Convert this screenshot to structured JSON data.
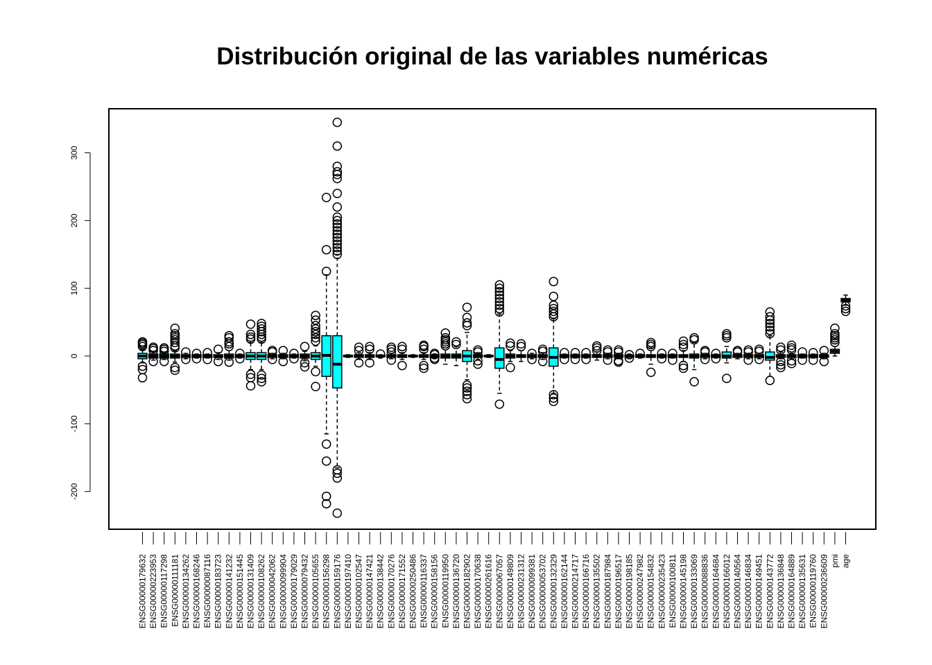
{
  "chart_data": {
    "type": "boxplot",
    "title": "Distribución original de las variables numéricas",
    "xlabel": "",
    "ylabel": "",
    "ylim": [
      -250,
      350
    ],
    "yticks": [
      -200,
      -100,
      0,
      100,
      200,
      300
    ],
    "box_color": "#00FFFF",
    "grid": false,
    "legend": "none",
    "categories": [
      "ENSG00000179632",
      "ENSG00000223953",
      "ENSG00000117298",
      "ENSG00000111181",
      "ENSG00000134262",
      "ENSG00000168246",
      "ENSG00000087116",
      "ENSG00000183723",
      "ENSG00000141232",
      "ENSG00000151445",
      "ENSG00000131409",
      "ENSG00000108262",
      "ENSG00000042062",
      "ENSG00000099904",
      "ENSG00000179029",
      "ENSG00000079432",
      "ENSG00000105655",
      "ENSG00000156298",
      "ENSG00000159176",
      "ENSG00000197410",
      "ENSG00000102547",
      "ENSG00000147421",
      "ENSG00000138442",
      "ENSG00000170276",
      "ENSG00000171552",
      "ENSG00000250486",
      "ENSG00000116337",
      "ENSG00000158156",
      "ENSG00000119950",
      "ENSG00000136720",
      "ENSG00000182902",
      "ENSG00000170638",
      "ENSG00000261616",
      "ENSG00000067057",
      "ENSG00000149809",
      "ENSG00000231312",
      "ENSG00000099381",
      "ENSG00000053702",
      "ENSG00000132329",
      "ENSG00000162144",
      "ENSG00000214717",
      "ENSG00000166716",
      "ENSG00000135502",
      "ENSG00000187984",
      "ENSG00000196517",
      "ENSG00000198185",
      "ENSG00000247982",
      "ENSG00000154832",
      "ENSG00000235423",
      "ENSG00000100811",
      "ENSG00000145198",
      "ENSG00000133069",
      "ENSG00000088836",
      "ENSG00000164684",
      "ENSG00000166012",
      "ENSG00000140564",
      "ENSG00000146834",
      "ENSG00000149451",
      "ENSG00000143772",
      "ENSG00000136848",
      "ENSG00000164889",
      "ENSG00000135631",
      "ENSG00000119760",
      "ENSG00000236609",
      "pmi",
      "age"
    ],
    "boxes": [
      {
        "q1": -4,
        "median": 0,
        "q3": 4,
        "lo": -10,
        "hi": 10,
        "out": [
          -32,
          -20,
          -15,
          14,
          17,
          19,
          21
        ]
      },
      {
        "q1": -3,
        "median": 0,
        "q3": 3,
        "lo": -6,
        "hi": 6,
        "out": [
          -8,
          8,
          11,
          13
        ]
      },
      {
        "q1": -3,
        "median": 0,
        "q3": 3,
        "lo": -5,
        "hi": 5,
        "out": [
          -8,
          7,
          10,
          12
        ]
      },
      {
        "q1": -3,
        "median": 0,
        "q3": 3,
        "lo": -9,
        "hi": 8,
        "out": [
          -21,
          -17,
          12,
          15,
          20,
          24,
          27,
          30,
          33,
          41
        ]
      },
      {
        "q1": -2,
        "median": 0,
        "q3": 2,
        "lo": -4,
        "hi": 4,
        "out": [
          -5,
          6
        ]
      },
      {
        "q1": -2,
        "median": 0,
        "q3": 2,
        "lo": -3,
        "hi": 3,
        "out": [
          -4,
          4
        ]
      },
      {
        "q1": -2,
        "median": 0,
        "q3": 2,
        "lo": -3,
        "hi": 3,
        "out": [
          -5,
          5
        ]
      },
      {
        "q1": -2,
        "median": 0,
        "q3": 2,
        "lo": -5,
        "hi": 5,
        "out": [
          -8,
          10
        ]
      },
      {
        "q1": -3,
        "median": 0,
        "q3": 3,
        "lo": -6,
        "hi": 12,
        "out": [
          -9,
          14,
          18,
          21,
          27,
          30
        ]
      },
      {
        "q1": -2,
        "median": 0,
        "q3": 2,
        "lo": -3,
        "hi": 3,
        "out": [
          -4,
          4
        ]
      },
      {
        "q1": -5,
        "median": 0,
        "q3": 5,
        "lo": -20,
        "hi": 20,
        "out": [
          -44,
          -32,
          -27,
          25,
          28,
          32,
          47
        ]
      },
      {
        "q1": -5,
        "median": 0,
        "q3": 5,
        "lo": -20,
        "hi": 20,
        "out": [
          -38,
          -33,
          -28,
          25,
          28,
          32,
          36,
          40,
          44,
          48
        ]
      },
      {
        "q1": -2,
        "median": 0,
        "q3": 2,
        "lo": -4,
        "hi": 4,
        "out": [
          -5,
          6,
          8
        ]
      },
      {
        "q1": -2,
        "median": 0,
        "q3": 2,
        "lo": -4,
        "hi": 4,
        "out": [
          -8,
          8
        ]
      },
      {
        "q1": -2,
        "median": 0,
        "q3": 2,
        "lo": -3,
        "hi": 3,
        "out": [
          -4,
          4
        ]
      },
      {
        "q1": -3,
        "median": 0,
        "q3": 3,
        "lo": -7,
        "hi": 7,
        "out": [
          -16,
          -10,
          14
        ]
      },
      {
        "q1": -5,
        "median": 0,
        "q3": 5,
        "lo": -15,
        "hi": 15,
        "out": [
          -45,
          -23,
          22,
          27,
          32,
          36,
          40,
          45,
          53,
          60
        ]
      },
      {
        "q1": -30,
        "median": 1,
        "q3": 30,
        "lo": -115,
        "hi": 120,
        "out": [
          -218,
          -207,
          -155,
          -130,
          125,
          157,
          234
        ]
      },
      {
        "q1": -47,
        "median": -12,
        "q3": 30,
        "lo": -165,
        "hi": 150,
        "out": [
          -232,
          -180,
          -173,
          -168,
          150,
          155,
          160,
          165,
          170,
          175,
          180,
          185,
          190,
          195,
          200,
          205,
          220,
          240,
          262,
          268,
          272,
          280,
          310,
          345
        ]
      },
      {
        "q1": -1,
        "median": 0,
        "q3": 1,
        "lo": -2,
        "hi": 2,
        "out": []
      },
      {
        "q1": -2,
        "median": 0,
        "q3": 2,
        "lo": -5,
        "hi": 5,
        "out": [
          -10,
          8,
          13
        ]
      },
      {
        "q1": -2,
        "median": 0,
        "q3": 2,
        "lo": -5,
        "hi": 5,
        "out": [
          -10,
          10,
          14
        ]
      },
      {
        "q1": -1,
        "median": 0,
        "q3": 1,
        "lo": -2,
        "hi": 2,
        "out": [
          3
        ]
      },
      {
        "q1": -2,
        "median": 0,
        "q3": 2,
        "lo": -4,
        "hi": 4,
        "out": [
          -6,
          6,
          10,
          13
        ]
      },
      {
        "q1": -2,
        "median": 0,
        "q3": 2,
        "lo": -5,
        "hi": 5,
        "out": [
          -14,
          10,
          14
        ]
      },
      {
        "q1": -1,
        "median": 0,
        "q3": 1,
        "lo": -2,
        "hi": 2,
        "out": []
      },
      {
        "q1": -2,
        "median": 0,
        "q3": 2,
        "lo": -5,
        "hi": 5,
        "out": [
          -18,
          -14,
          10,
          14,
          16
        ]
      },
      {
        "q1": -2,
        "median": 0,
        "q3": 2,
        "lo": -3,
        "hi": 3,
        "out": [
          -5,
          -3,
          2,
          4
        ]
      },
      {
        "q1": -3,
        "median": 0,
        "q3": 3,
        "lo": -12,
        "hi": 12,
        "out": [
          15,
          18,
          21,
          24,
          27,
          34
        ]
      },
      {
        "q1": -3,
        "median": 0,
        "q3": 3,
        "lo": -14,
        "hi": 14,
        "out": [
          17,
          21
        ]
      },
      {
        "q1": -8,
        "median": 0,
        "q3": 8,
        "lo": -35,
        "hi": 35,
        "out": [
          -63,
          -57,
          -52,
          -47,
          -43,
          45,
          49,
          57,
          72
        ]
      },
      {
        "q1": -2,
        "median": 0,
        "q3": 2,
        "lo": -5,
        "hi": 5,
        "out": [
          -12,
          -7,
          6,
          9
        ]
      },
      {
        "q1": -1,
        "median": 0,
        "q3": 1,
        "lo": -2,
        "hi": 2,
        "out": []
      },
      {
        "q1": -18,
        "median": -5,
        "q3": 12,
        "lo": -55,
        "hi": 62,
        "out": [
          -71,
          65,
          70,
          75,
          80,
          85,
          90,
          95,
          100,
          105
        ]
      },
      {
        "q1": -3,
        "median": 0,
        "q3": 3,
        "lo": -8,
        "hi": 8,
        "out": [
          -17,
          15,
          19
        ]
      },
      {
        "q1": -2,
        "median": 0,
        "q3": 2,
        "lo": -8,
        "hi": 8,
        "out": [
          14,
          18
        ]
      },
      {
        "q1": -2,
        "median": 0,
        "q3": 2,
        "lo": -4,
        "hi": 4,
        "out": [
          -5,
          4
        ]
      },
      {
        "q1": -2,
        "median": 0,
        "q3": 2,
        "lo": -5,
        "hi": 5,
        "out": [
          -8,
          7,
          10
        ]
      },
      {
        "q1": -15,
        "median": -2,
        "q3": 12,
        "lo": -55,
        "hi": 55,
        "out": [
          -67,
          -62,
          -57,
          58,
          62,
          66,
          70,
          75,
          88,
          110
        ]
      },
      {
        "q1": -2,
        "median": 0,
        "q3": 2,
        "lo": -3,
        "hi": 3,
        "out": [
          -5,
          5
        ]
      },
      {
        "q1": -2,
        "median": 0,
        "q3": 2,
        "lo": -3,
        "hi": 3,
        "out": [
          -5,
          5
        ]
      },
      {
        "q1": -2,
        "median": 0,
        "q3": 2,
        "lo": -3,
        "hi": 3,
        "out": [
          -5,
          5
        ]
      },
      {
        "q1": -2,
        "median": 0,
        "q3": 2,
        "lo": -6,
        "hi": 6,
        "out": [
          8,
          12,
          15
        ]
      },
      {
        "q1": -2,
        "median": 0,
        "q3": 2,
        "lo": -4,
        "hi": 4,
        "out": [
          -6,
          6,
          9
        ]
      },
      {
        "q1": -2,
        "median": 0,
        "q3": 2,
        "lo": -4,
        "hi": 4,
        "out": [
          -9,
          -7,
          6,
          9
        ]
      },
      {
        "q1": -1,
        "median": 0,
        "q3": 1,
        "lo": -2,
        "hi": 2,
        "out": [
          -3,
          2
        ]
      },
      {
        "q1": -2,
        "median": 0,
        "q3": 2,
        "lo": -3,
        "hi": 3,
        "out": [
          4
        ]
      },
      {
        "q1": -2,
        "median": 0,
        "q3": 2,
        "lo": -12,
        "hi": 12,
        "out": [
          -24,
          14,
          17,
          20
        ]
      },
      {
        "q1": -2,
        "median": 0,
        "q3": 2,
        "lo": -3,
        "hi": 3,
        "out": [
          -4,
          4
        ]
      },
      {
        "q1": -2,
        "median": 0,
        "q3": 2,
        "lo": -3,
        "hi": 3,
        "out": [
          -6,
          4
        ]
      },
      {
        "q1": -2,
        "median": 0,
        "q3": 2,
        "lo": -8,
        "hi": 8,
        "out": [
          -18,
          -14,
          13,
          17,
          22
        ]
      },
      {
        "q1": -3,
        "median": 0,
        "q3": 3,
        "lo": -20,
        "hi": 20,
        "out": [
          -38,
          24,
          27
        ]
      },
      {
        "q1": -2,
        "median": 0,
        "q3": 2,
        "lo": -4,
        "hi": 4,
        "out": [
          -5,
          6,
          8
        ]
      },
      {
        "q1": -2,
        "median": 0,
        "q3": 2,
        "lo": -3,
        "hi": 3,
        "out": [
          -4,
          4
        ]
      },
      {
        "q1": -3,
        "median": 0,
        "q3": 6,
        "lo": -10,
        "hi": 14,
        "out": [
          -33,
          27,
          30,
          33
        ]
      },
      {
        "q1": -2,
        "median": 0,
        "q3": 2,
        "lo": -4,
        "hi": 4,
        "out": [
          6,
          8
        ]
      },
      {
        "q1": -2,
        "median": 0,
        "q3": 2,
        "lo": -4,
        "hi": 4,
        "out": [
          -6,
          6,
          9
        ]
      },
      {
        "q1": -2,
        "median": 0,
        "q3": 2,
        "lo": -4,
        "hi": 4,
        "out": [
          -5,
          7,
          10
        ]
      },
      {
        "q1": -6,
        "median": -2,
        "q3": 6,
        "lo": -30,
        "hi": 30,
        "out": [
          -36,
          33,
          38,
          43,
          48,
          53,
          58,
          65
        ]
      },
      {
        "q1": -2,
        "median": 0,
        "q3": 2,
        "lo": -4,
        "hi": 6,
        "out": [
          -17,
          -13,
          -8,
          9,
          13
        ]
      },
      {
        "q1": -2,
        "median": 0,
        "q3": 2,
        "lo": -4,
        "hi": 4,
        "out": [
          -11,
          -7,
          9,
          12,
          16
        ]
      },
      {
        "q1": -2,
        "median": 0,
        "q3": 2,
        "lo": -3,
        "hi": 3,
        "out": [
          -6,
          6
        ]
      },
      {
        "q1": -2,
        "median": 0,
        "q3": 2,
        "lo": -3,
        "hi": 3,
        "out": [
          -6,
          5
        ]
      },
      {
        "q1": -2,
        "median": 0,
        "q3": 2,
        "lo": -4,
        "hi": 4,
        "out": [
          -8,
          8
        ]
      },
      {
        "q1": 4,
        "median": 7,
        "q3": 10,
        "lo": 0,
        "hi": 18,
        "out": [
          20,
          24,
          27,
          30,
          33,
          41
        ]
      },
      {
        "q1": 80,
        "median": 82,
        "q3": 85,
        "lo": 75,
        "hi": 90,
        "out": [
          66,
          70,
          74
        ]
      }
    ]
  }
}
